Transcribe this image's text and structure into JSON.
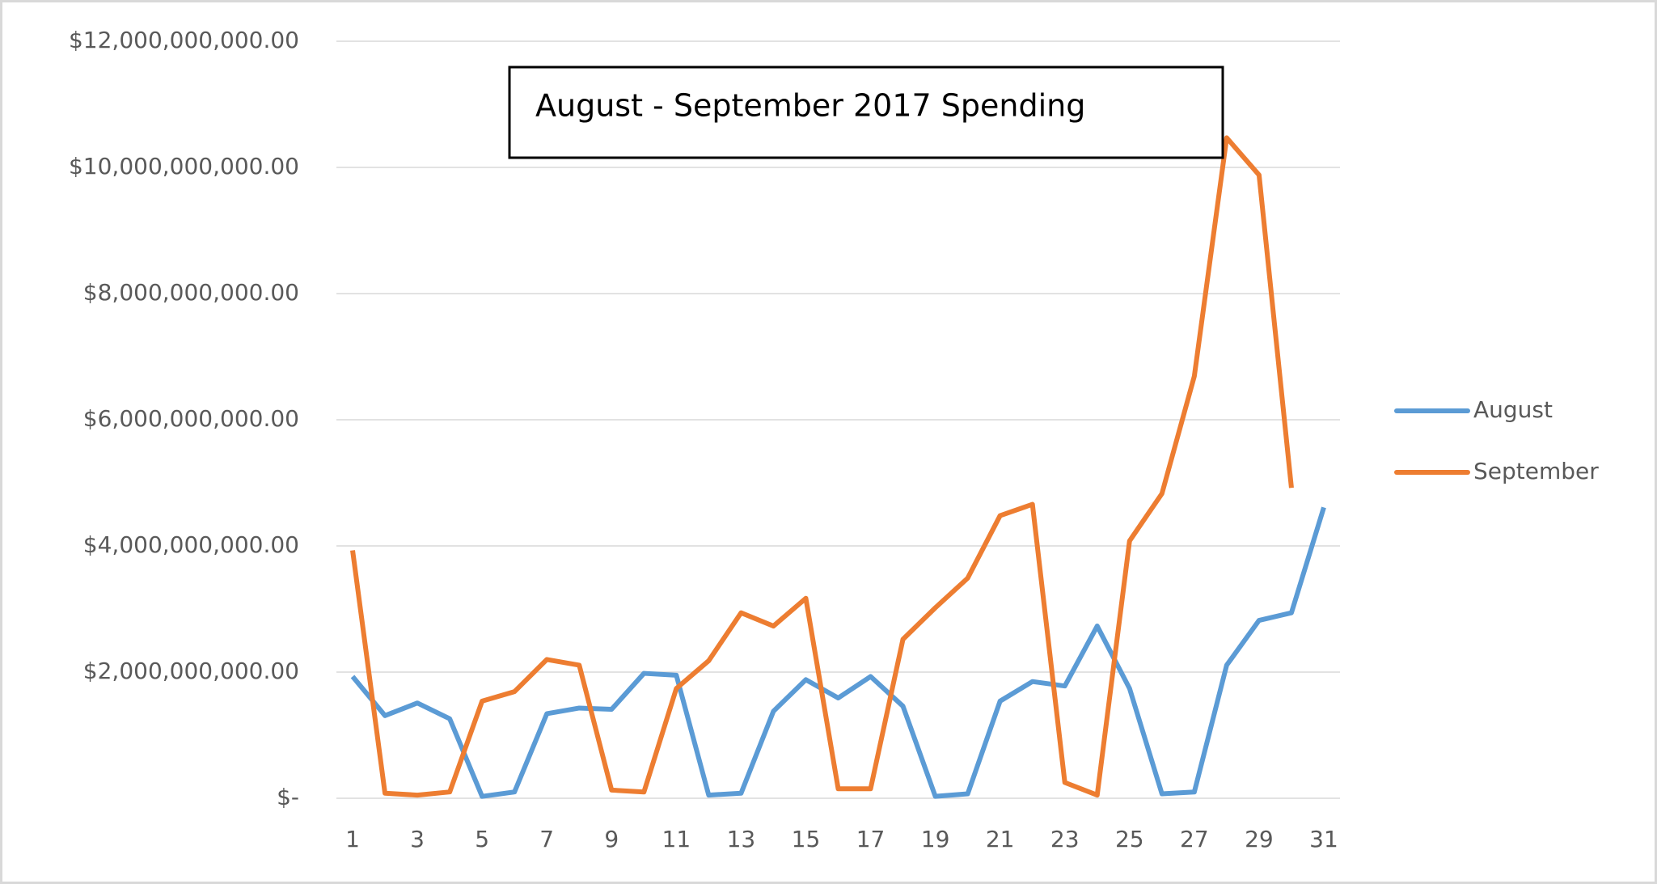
{
  "chart_data": {
    "type": "line",
    "title": "August - September 2017 Spending",
    "x": [
      1,
      2,
      3,
      4,
      5,
      6,
      7,
      8,
      9,
      10,
      11,
      12,
      13,
      14,
      15,
      16,
      17,
      18,
      19,
      20,
      21,
      22,
      23,
      24,
      25,
      26,
      27,
      28,
      29,
      30,
      31
    ],
    "xlim": [
      0.5,
      31.5
    ],
    "xticks": [
      1,
      3,
      5,
      7,
      9,
      11,
      13,
      15,
      17,
      19,
      21,
      23,
      25,
      27,
      29,
      31
    ],
    "ylim": [
      0,
      12000000000
    ],
    "yticks": [
      {
        "value": 0,
        "label": "$-"
      },
      {
        "value": 2000000000,
        "label": "$2,000,000,000.00"
      },
      {
        "value": 4000000000,
        "label": "$4,000,000,000.00"
      },
      {
        "value": 6000000000,
        "label": "$6,000,000,000.00"
      },
      {
        "value": 8000000000,
        "label": "$8,000,000,000.00"
      },
      {
        "value": 10000000000,
        "label": "$10,000,000,000.00"
      },
      {
        "value": 12000000000,
        "label": "$12,000,000,000.00"
      }
    ],
    "grid": true,
    "legend": "right",
    "series": [
      {
        "name": "August",
        "color": "#5b9bd5",
        "values": [
          1930000000,
          1310000000,
          1510000000,
          1260000000,
          30000000,
          100000000,
          1340000000,
          1430000000,
          1410000000,
          1980000000,
          1950000000,
          50000000,
          80000000,
          1380000000,
          1880000000,
          1590000000,
          1930000000,
          1460000000,
          30000000,
          70000000,
          1540000000,
          1850000000,
          1780000000,
          2730000000,
          1740000000,
          70000000,
          100000000,
          2110000000,
          2820000000,
          2940000000,
          4610000000
        ]
      },
      {
        "name": "September",
        "color": "#ed7d31",
        "values": [
          3930000000,
          80000000,
          50000000,
          100000000,
          1540000000,
          1690000000,
          2200000000,
          2110000000,
          130000000,
          100000000,
          1740000000,
          2180000000,
          2940000000,
          2730000000,
          3170000000,
          150000000,
          150000000,
          2520000000,
          3020000000,
          3490000000,
          4480000000,
          4660000000,
          250000000,
          50000000,
          4080000000,
          4830000000,
          6690000000,
          10470000000,
          9880000000,
          4920000000,
          null
        ]
      }
    ]
  }
}
